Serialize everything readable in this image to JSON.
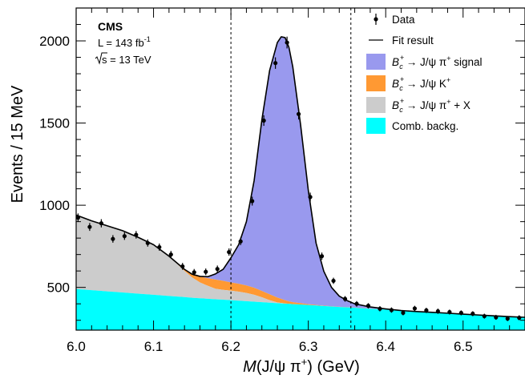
{
  "chart_data": {
    "type": "histogram-fit",
    "experiment": "CMS",
    "luminosity": "L = 143 fb",
    "luminosity_exponent": "-1",
    "energy": "s = 13 TeV",
    "xlabel": {
      "var": "M",
      "rest": "(J/ψ  π",
      "sup": "+",
      "end": ") (GeV)"
    },
    "ylabel": "Events / 15 MeV",
    "xlim": [
      6.0,
      6.58
    ],
    "ylim": [
      240,
      2200
    ],
    "x_ticks": [
      6.0,
      6.1,
      6.2,
      6.3,
      6.4,
      6.5
    ],
    "x_tick_labels": [
      "6.0",
      "6.1",
      "6.2",
      "6.3",
      "6.4",
      "6.5"
    ],
    "y_ticks": [
      500,
      1000,
      1500,
      2000
    ],
    "y_tick_labels": [
      "500",
      "1000",
      "1500",
      "2000"
    ],
    "vlines": [
      6.2,
      6.355
    ],
    "legend": {
      "position": "top-right",
      "entries": [
        {
          "kind": "data",
          "label": "Data"
        },
        {
          "kind": "line",
          "label": "Fit result"
        },
        {
          "kind": "box",
          "color": "#9999ee",
          "pre": "B",
          "sub": "c",
          "sup": "+",
          "post": "→ J/ψ  π",
          "post_sup": "+",
          "tail": " signal"
        },
        {
          "kind": "box",
          "color": "#ff9933",
          "pre": "B",
          "sub": "c",
          "sup": "+",
          "post": "→ J/ψ K",
          "post_sup": "+",
          "tail": ""
        },
        {
          "kind": "box",
          "color": "#cccccc",
          "pre": "B",
          "sub": "c",
          "sup": "+",
          "post": "→ J/ψ  π",
          "post_sup": "+",
          "tail": " + X"
        },
        {
          "kind": "box",
          "color": "#00ffff",
          "label": "Comb. backg."
        }
      ]
    },
    "colors": {
      "signal": "#9999ee",
      "jpsik": "#ff9933",
      "partial": "#cccccc",
      "comb": "#00ffff",
      "data": "#000000",
      "fit": "#000000"
    },
    "data_points": [
      {
        "x": 6.0025,
        "y": 925,
        "err": 25
      },
      {
        "x": 6.0175,
        "y": 868,
        "err": 24
      },
      {
        "x": 6.0325,
        "y": 890,
        "err": 25
      },
      {
        "x": 6.0475,
        "y": 795,
        "err": 23
      },
      {
        "x": 6.0625,
        "y": 812,
        "err": 23
      },
      {
        "x": 6.0775,
        "y": 820,
        "err": 23
      },
      {
        "x": 6.0925,
        "y": 770,
        "err": 22
      },
      {
        "x": 6.1075,
        "y": 745,
        "err": 22
      },
      {
        "x": 6.1225,
        "y": 700,
        "err": 22
      },
      {
        "x": 6.1375,
        "y": 628,
        "err": 21
      },
      {
        "x": 6.1525,
        "y": 592,
        "err": 20
      },
      {
        "x": 6.1675,
        "y": 595,
        "err": 20
      },
      {
        "x": 6.1825,
        "y": 612,
        "err": 21
      },
      {
        "x": 6.1975,
        "y": 715,
        "err": 22
      },
      {
        "x": 6.2125,
        "y": 780,
        "err": 23
      },
      {
        "x": 6.2275,
        "y": 1025,
        "err": 27
      },
      {
        "x": 6.2425,
        "y": 1515,
        "err": 32
      },
      {
        "x": 6.2575,
        "y": 1865,
        "err": 35
      },
      {
        "x": 6.2725,
        "y": 1990,
        "err": 36
      },
      {
        "x": 6.2875,
        "y": 1555,
        "err": 33
      },
      {
        "x": 6.3025,
        "y": 1050,
        "err": 27
      },
      {
        "x": 6.3175,
        "y": 690,
        "err": 22
      },
      {
        "x": 6.3325,
        "y": 540,
        "err": 19
      },
      {
        "x": 6.3475,
        "y": 430,
        "err": 17
      },
      {
        "x": 6.3625,
        "y": 400,
        "err": 17
      },
      {
        "x": 6.3775,
        "y": 388,
        "err": 16
      },
      {
        "x": 6.3925,
        "y": 370,
        "err": 16
      },
      {
        "x": 6.4075,
        "y": 362,
        "err": 16
      },
      {
        "x": 6.4225,
        "y": 345,
        "err": 15
      },
      {
        "x": 6.4375,
        "y": 372,
        "err": 16
      },
      {
        "x": 6.4525,
        "y": 360,
        "err": 16
      },
      {
        "x": 6.4675,
        "y": 355,
        "err": 16
      },
      {
        "x": 6.4825,
        "y": 350,
        "err": 15
      },
      {
        "x": 6.4975,
        "y": 345,
        "err": 15
      },
      {
        "x": 6.5125,
        "y": 340,
        "err": 15
      },
      {
        "x": 6.5275,
        "y": 325,
        "err": 15
      },
      {
        "x": 6.5425,
        "y": 318,
        "err": 15
      },
      {
        "x": 6.5575,
        "y": 310,
        "err": 15
      },
      {
        "x": 6.5725,
        "y": 315,
        "err": 15
      }
    ],
    "model_curves": {
      "x": [
        6.0,
        6.02,
        6.04,
        6.06,
        6.08,
        6.1,
        6.12,
        6.14,
        6.15,
        6.16,
        6.17,
        6.18,
        6.19,
        6.2,
        6.21,
        6.22,
        6.23,
        6.24,
        6.25,
        6.26,
        6.265,
        6.27,
        6.275,
        6.28,
        6.29,
        6.3,
        6.31,
        6.32,
        6.33,
        6.34,
        6.35,
        6.36,
        6.38,
        6.4,
        6.42,
        6.44,
        6.46,
        6.48,
        6.5,
        6.52,
        6.54,
        6.56,
        6.58
      ],
      "comb": [
        490,
        483,
        476,
        469,
        462,
        455,
        448,
        441,
        437,
        434,
        431,
        428,
        425,
        422,
        419,
        416,
        413,
        410,
        407,
        404,
        403,
        401,
        400,
        398,
        396,
        393,
        390,
        387,
        384,
        381,
        379,
        376,
        370,
        365,
        359,
        353,
        348,
        343,
        337,
        332,
        327,
        322,
        318
      ],
      "partial_total": [
        940,
        905,
        875,
        845,
        805,
        760,
        690,
        600,
        560,
        530,
        510,
        492,
        485,
        480,
        474,
        466,
        455,
        440,
        422,
        408,
        405,
        402,
        400,
        398,
        396,
        393,
        390,
        387,
        384,
        381,
        379,
        376,
        370,
        365,
        359,
        353,
        348,
        343,
        337,
        332,
        327,
        322,
        318
      ],
      "jpsik_total": [
        940,
        905,
        875,
        845,
        805,
        760,
        690,
        610,
        580,
        565,
        556,
        548,
        540,
        530,
        522,
        512,
        498,
        478,
        458,
        438,
        430,
        422,
        415,
        410,
        404,
        398,
        393,
        389,
        385,
        382,
        380,
        377,
        371,
        365,
        359,
        353,
        348,
        343,
        337,
        332,
        327,
        322,
        318
      ],
      "total": [
        940,
        905,
        875,
        845,
        805,
        760,
        690,
        610,
        580,
        567,
        565,
        582,
        610,
        680,
        760,
        900,
        1150,
        1520,
        1820,
        1990,
        2025,
        2020,
        1960,
        1840,
        1490,
        1090,
        770,
        598,
        500,
        447,
        420,
        400,
        381,
        369,
        359,
        353,
        348,
        343,
        337,
        332,
        327,
        322,
        318
      ]
    }
  }
}
